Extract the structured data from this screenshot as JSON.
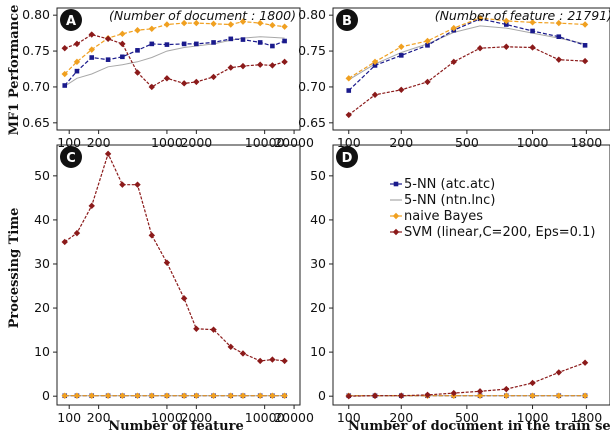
{
  "colors": {
    "knn_atc": "#1a1a8c",
    "knn_ntn": "#a8a8a8",
    "bayes": "#f0a020",
    "svm": "#8b1a1a"
  },
  "labels": {
    "ylabel_top": "MF1 Performance",
    "ylabel_bottom": "Processing Time",
    "xlabel_left": "Number of feature",
    "xlabel_right": "Number of document in the train set"
  },
  "chart_data": [
    {
      "panel": "A",
      "type": "line",
      "annotation": "(Number of document : 1800)",
      "xscale": "log",
      "xticks": [
        100,
        200,
        1000,
        2000,
        10000,
        20000
      ],
      "xticklabels": [
        "100",
        "200",
        "1000",
        "2000",
        "10000",
        "20000"
      ],
      "yticks": [
        0.65,
        0.7,
        0.75,
        0.8
      ],
      "yticklabels": [
        "0.65",
        "0.70",
        "0.75",
        "0.80"
      ],
      "ylim": [
        0.64,
        0.81
      ],
      "x": [
        90,
        120,
        170,
        250,
        350,
        500,
        700,
        1000,
        1500,
        2000,
        3000,
        4500,
        6000,
        9000,
        12000,
        16000
      ],
      "series": [
        {
          "name": "5-NN (atc.atc)",
          "color_key": "knn_atc",
          "marker": "square",
          "values": [
            0.702,
            0.722,
            0.741,
            0.738,
            0.742,
            0.751,
            0.76,
            0.759,
            0.76,
            0.76,
            0.762,
            0.767,
            0.766,
            0.762,
            0.757,
            0.764
          ]
        },
        {
          "name": "5-NN (ntn.lnc)",
          "color_key": "knn_ntn",
          "marker": "none",
          "values": [
            0.701,
            0.712,
            0.718,
            0.728,
            0.731,
            0.735,
            0.741,
            0.75,
            0.755,
            0.757,
            0.76,
            0.765,
            0.768,
            0.77,
            0.769,
            0.768
          ]
        },
        {
          "name": "naive Bayes",
          "color_key": "bayes",
          "marker": "diamond",
          "values": [
            0.718,
            0.735,
            0.752,
            0.768,
            0.774,
            0.779,
            0.781,
            0.787,
            0.789,
            0.789,
            0.788,
            0.787,
            0.791,
            0.789,
            0.786,
            0.784
          ]
        },
        {
          "name": "SVM (linear,C=200, Eps=0.1)",
          "color_key": "svm",
          "marker": "diamond",
          "values": [
            0.754,
            0.76,
            0.773,
            0.767,
            0.76,
            0.72,
            0.7,
            0.712,
            0.705,
            0.707,
            0.714,
            0.727,
            0.729,
            0.731,
            0.73,
            0.735
          ]
        }
      ]
    },
    {
      "panel": "B",
      "type": "line",
      "annotation": "(Number of feature : 21791)",
      "xscale": "linear",
      "xticks": [
        100,
        200,
        500,
        1000,
        1800
      ],
      "xticklabels": [
        "100",
        "200",
        "500",
        "1000",
        "1800"
      ],
      "yticks": [
        0.65,
        0.7,
        0.75,
        0.8
      ],
      "yticklabels": [
        "0.65",
        "0.70",
        "0.75",
        "0.80"
      ],
      "ylim": [
        0.64,
        0.81
      ],
      "x": [
        50,
        150,
        250,
        350,
        450,
        550,
        650,
        750,
        850,
        950
      ],
      "series": [
        {
          "name": "5-NN (atc.atc)",
          "color_key": "knn_atc",
          "marker": "square",
          "values": [
            0.695,
            0.73,
            0.744,
            0.758,
            0.779,
            0.795,
            0.787,
            0.778,
            0.77,
            0.758
          ]
        },
        {
          "name": "5-NN (ntn.lnc)",
          "color_key": "knn_ntn",
          "marker": "none",
          "values": [
            0.71,
            0.732,
            0.748,
            0.76,
            0.776,
            0.785,
            0.782,
            0.775,
            0.768,
            0.76
          ]
        },
        {
          "name": "naive Bayes",
          "color_key": "bayes",
          "marker": "diamond",
          "values": [
            0.712,
            0.735,
            0.756,
            0.764,
            0.782,
            0.796,
            0.792,
            0.79,
            0.789,
            0.787
          ]
        },
        {
          "name": "SVM (linear,C=200, Eps=0.1)",
          "color_key": "svm",
          "marker": "diamond",
          "values": [
            0.661,
            0.689,
            0.696,
            0.707,
            0.735,
            0.754,
            0.756,
            0.755,
            0.738,
            0.736
          ]
        }
      ]
    },
    {
      "panel": "C",
      "type": "line",
      "xscale": "log",
      "xticks": [
        100,
        200,
        1000,
        2000,
        10000,
        20000
      ],
      "xticklabels": [
        "100",
        "200",
        "1000",
        "2000",
        "10000",
        "20000"
      ],
      "yticks": [
        0,
        10,
        20,
        30,
        40,
        50
      ],
      "yticklabels": [
        "0",
        "10",
        "20",
        "30",
        "40",
        "50"
      ],
      "ylim": [
        -2,
        57
      ],
      "x": [
        90,
        120,
        170,
        250,
        350,
        500,
        700,
        1000,
        1500,
        2000,
        3000,
        4500,
        6000,
        9000,
        12000,
        16000
      ],
      "series": [
        {
          "name": "5-NN (atc.atc)",
          "color_key": "knn_atc",
          "marker": "square",
          "values": [
            0.1,
            0.1,
            0.1,
            0.1,
            0.1,
            0.1,
            0.1,
            0.1,
            0.1,
            0.1,
            0.1,
            0.1,
            0.1,
            0.1,
            0.1,
            0.1
          ]
        },
        {
          "name": "5-NN (ntn.lnc)",
          "color_key": "knn_ntn",
          "marker": "none",
          "values": [
            0.1,
            0.1,
            0.1,
            0.1,
            0.1,
            0.1,
            0.1,
            0.1,
            0.1,
            0.1,
            0.1,
            0.1,
            0.1,
            0.1,
            0.1,
            0.1
          ]
        },
        {
          "name": "naive Bayes",
          "color_key": "bayes",
          "marker": "diamond",
          "values": [
            0.1,
            0.1,
            0.1,
            0.1,
            0.1,
            0.1,
            0.1,
            0.1,
            0.1,
            0.1,
            0.1,
            0.1,
            0.1,
            0.1,
            0.1,
            0.1
          ]
        },
        {
          "name": "SVM (linear,C=200, Eps=0.1)",
          "color_key": "svm",
          "marker": "diamond",
          "values": [
            35.0,
            37.0,
            43.2,
            55.0,
            48.0,
            48.0,
            36.5,
            30.3,
            22.2,
            15.3,
            15.1,
            11.2,
            9.7,
            8.0,
            8.3,
            8.0
          ]
        }
      ]
    },
    {
      "panel": "D",
      "type": "line",
      "xscale": "linear",
      "xticks": [
        100,
        200,
        500,
        1000,
        1800
      ],
      "xticklabels": [
        "100",
        "200",
        "500",
        "1000",
        "1800"
      ],
      "yticks": [
        0,
        10,
        20,
        30,
        40,
        50
      ],
      "yticklabels": [
        "0",
        "10",
        "20",
        "30",
        "40",
        "50"
      ],
      "ylim": [
        -2,
        57
      ],
      "x": [
        50,
        150,
        250,
        350,
        450,
        550,
        650,
        750,
        850,
        950
      ],
      "series": [
        {
          "name": "5-NN (atc.atc)",
          "color_key": "knn_atc",
          "marker": "square",
          "values": [
            0.1,
            0.1,
            0.1,
            0.1,
            0.1,
            0.1,
            0.1,
            0.1,
            0.1,
            0.1
          ]
        },
        {
          "name": "5-NN (ntn.lnc)",
          "color_key": "knn_ntn",
          "marker": "none",
          "values": [
            0.1,
            0.1,
            0.1,
            0.1,
            0.1,
            0.1,
            0.1,
            0.1,
            0.1,
            0.1
          ]
        },
        {
          "name": "naive Bayes",
          "color_key": "bayes",
          "marker": "diamond",
          "values": [
            0.1,
            0.1,
            0.1,
            0.1,
            0.1,
            0.1,
            0.1,
            0.1,
            0.1,
            0.1
          ]
        },
        {
          "name": "SVM (linear,C=200, Eps=0.1)",
          "color_key": "svm",
          "marker": "diamond",
          "values": [
            0.0,
            0.1,
            0.1,
            0.3,
            0.7,
            1.1,
            1.6,
            3.0,
            5.4,
            7.6
          ]
        }
      ],
      "legend": {
        "placement": "upper-middle",
        "entries": [
          {
            "label": "5-NN (atc.atc)",
            "color_key": "knn_atc",
            "marker": "square"
          },
          {
            "label": "5-NN (ntn.lnc)",
            "color_key": "knn_ntn",
            "marker": "none"
          },
          {
            "label": "naive Bayes",
            "color_key": "bayes",
            "marker": "diamond"
          },
          {
            "label": "SVM (linear,C=200, Eps=0.1)",
            "color_key": "svm",
            "marker": "diamond"
          }
        ]
      }
    }
  ]
}
